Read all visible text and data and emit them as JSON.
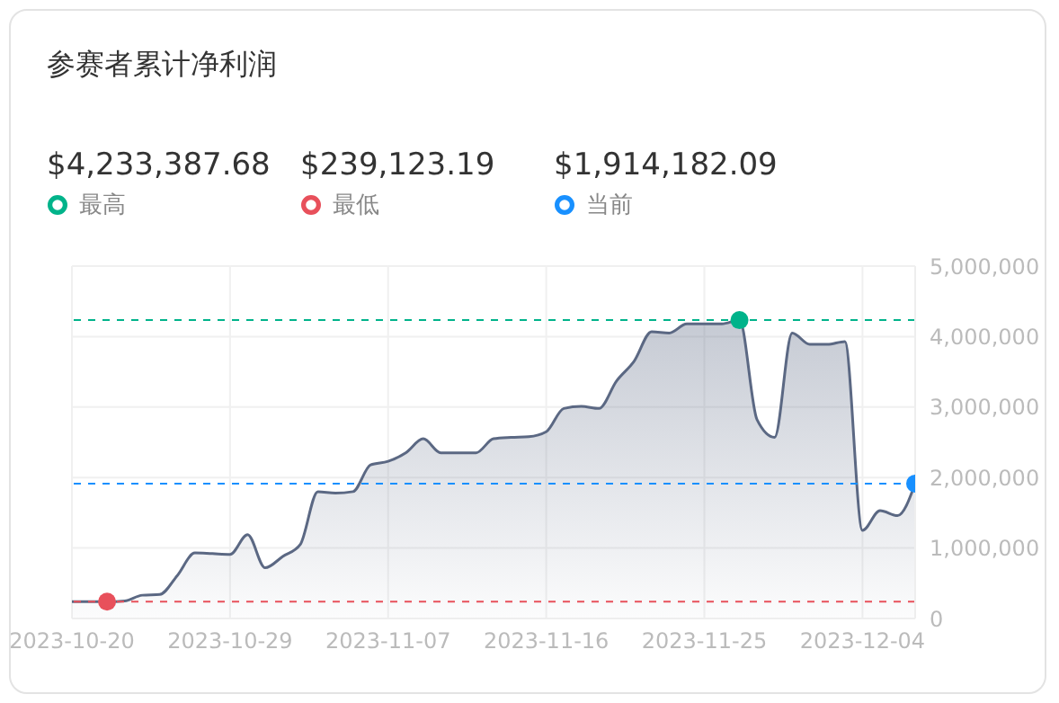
{
  "chart_data": {
    "type": "area",
    "title": "参赛者累计净利润",
    "x": [
      "2023-10-20",
      "2023-10-21",
      "2023-10-22",
      "2023-10-23",
      "2023-10-24",
      "2023-10-25",
      "2023-10-26",
      "2023-10-27",
      "2023-10-28",
      "2023-10-29",
      "2023-10-30",
      "2023-10-31",
      "2023-11-01",
      "2023-11-02",
      "2023-11-03",
      "2023-11-04",
      "2023-11-05",
      "2023-11-06",
      "2023-11-07",
      "2023-11-08",
      "2023-11-09",
      "2023-11-10",
      "2023-11-11",
      "2023-11-12",
      "2023-11-13",
      "2023-11-14",
      "2023-11-15",
      "2023-11-16",
      "2023-11-17",
      "2023-11-18",
      "2023-11-19",
      "2023-11-20",
      "2023-11-21",
      "2023-11-22",
      "2023-11-23",
      "2023-11-24",
      "2023-11-25",
      "2023-11-26",
      "2023-11-27",
      "2023-11-28",
      "2023-11-29",
      "2023-11-30",
      "2023-12-01",
      "2023-12-02",
      "2023-12-03",
      "2023-12-04",
      "2023-12-05",
      "2023-12-06",
      "2023-12-07"
    ],
    "series": [
      {
        "color": "#5b6883",
        "values": [
          240000,
          240000,
          239123.19,
          250000,
          330000,
          340000,
          610000,
          930000,
          920000,
          910000,
          1190000,
          720000,
          880000,
          1050000,
          1800000,
          1780000,
          1800000,
          2180000,
          2230000,
          2350000,
          2550000,
          2350000,
          2350000,
          2350000,
          2550000,
          2570000,
          2580000,
          2650000,
          2980000,
          3010000,
          2980000,
          3370000,
          3650000,
          4070000,
          4050000,
          4180000,
          4180000,
          4180000,
          4233387.68,
          2820000,
          2570000,
          4050000,
          3890000,
          3890000,
          3930000,
          1250000,
          1530000,
          1460000,
          1914182.09
        ]
      }
    ],
    "xlim": [
      "2023-10-20",
      "2023-12-07"
    ],
    "xticks": [
      "2023-10-20",
      "2023-10-29",
      "2023-11-07",
      "2023-11-16",
      "2023-11-25",
      "2023-12-04"
    ],
    "ylim": [
      0,
      5000000
    ],
    "yticks": [
      0,
      {
        "value": 1000000,
        "label": "1,000,000"
      },
      {
        "value": 2000000,
        "label": "2,000,000"
      },
      {
        "value": 3000000,
        "label": "3,000,000"
      },
      {
        "value": 4000000,
        "label": "4,000,000"
      },
      {
        "value": 5000000,
        "label": "5,000,000"
      }
    ],
    "ref_lines": [
      {
        "axis": "y",
        "value": 4233387.68,
        "label": "最高",
        "color": "#00b38a",
        "line_style": "dashed"
      },
      {
        "axis": "y",
        "value": 239123.19,
        "label": "最低",
        "color": "#e8505b",
        "line_style": "dashed"
      },
      {
        "axis": "y",
        "value": 1914182.09,
        "label": "当前",
        "color": "#1890ff",
        "line_style": "dashed"
      }
    ],
    "annotations": [
      "$4,233,387.68",
      "$239,123.19",
      "$1,914,182.09"
    ],
    "grid": true,
    "legend": "top left"
  }
}
